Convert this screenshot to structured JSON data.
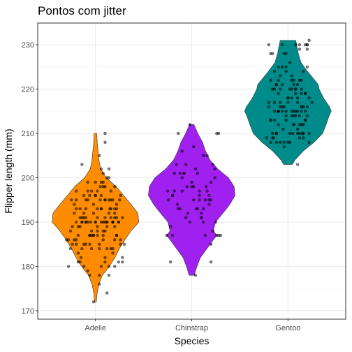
{
  "chart_data": {
    "type": "violin",
    "title": "Pontos com jitter",
    "xlabel": "Species",
    "ylabel": "Flipper length (mm)",
    "categories": [
      "Adelie",
      "Chinstrap",
      "Gentoo"
    ],
    "colors": [
      "#ff8c00",
      "#a020f0",
      "#008b8b"
    ],
    "ylim": [
      168.1,
      234.9
    ],
    "yticks": [
      170,
      180,
      190,
      200,
      210,
      220,
      230
    ],
    "grid": true,
    "violins": [
      {
        "name": "Adelie",
        "min": 172,
        "max": 210,
        "density": [
          [
            172,
            0.02
          ],
          [
            174,
            0.04
          ],
          [
            176,
            0.08
          ],
          [
            178,
            0.16
          ],
          [
            180,
            0.32
          ],
          [
            182,
            0.45
          ],
          [
            184,
            0.55
          ],
          [
            186,
            0.68
          ],
          [
            188,
            0.82
          ],
          [
            190,
            1.0
          ],
          [
            192,
            0.98
          ],
          [
            194,
            0.82
          ],
          [
            196,
            0.65
          ],
          [
            198,
            0.48
          ],
          [
            200,
            0.25
          ],
          [
            202,
            0.12
          ],
          [
            204,
            0.08
          ],
          [
            206,
            0.06
          ],
          [
            208,
            0.04
          ],
          [
            210,
            0.03
          ]
        ]
      },
      {
        "name": "Chinstrap",
        "min": 178,
        "max": 212,
        "density": [
          [
            178,
            0.06
          ],
          [
            180,
            0.12
          ],
          [
            182,
            0.2
          ],
          [
            184,
            0.35
          ],
          [
            186,
            0.5
          ],
          [
            187,
            0.58
          ],
          [
            188,
            0.5
          ],
          [
            190,
            0.55
          ],
          [
            192,
            0.72
          ],
          [
            194,
            0.88
          ],
          [
            196,
            1.0
          ],
          [
            198,
            0.98
          ],
          [
            200,
            0.85
          ],
          [
            202,
            0.6
          ],
          [
            204,
            0.42
          ],
          [
            206,
            0.32
          ],
          [
            208,
            0.25
          ],
          [
            210,
            0.14
          ],
          [
            212,
            0.05
          ]
        ]
      },
      {
        "name": "Gentoo",
        "min": 203,
        "max": 231,
        "density": [
          [
            203,
            0.1
          ],
          [
            204,
            0.16
          ],
          [
            206,
            0.35
          ],
          [
            208,
            0.6
          ],
          [
            210,
            0.8
          ],
          [
            212,
            0.88
          ],
          [
            214,
            0.95
          ],
          [
            215,
            1.0
          ],
          [
            216,
            0.96
          ],
          [
            218,
            0.82
          ],
          [
            220,
            0.72
          ],
          [
            221,
            0.7
          ],
          [
            222,
            0.62
          ],
          [
            224,
            0.45
          ],
          [
            226,
            0.3
          ],
          [
            228,
            0.24
          ],
          [
            229,
            0.22
          ],
          [
            230,
            0.2
          ],
          [
            231,
            0.18
          ]
        ]
      }
    ],
    "points": [
      {
        "name": "Adelie",
        "y": [
          181,
          186,
          195,
          193,
          190,
          181,
          195,
          193,
          190,
          186,
          180,
          182,
          191,
          198,
          185,
          195,
          197,
          184,
          194,
          174,
          180,
          189,
          185,
          180,
          187,
          183,
          187,
          172,
          180,
          178,
          178,
          188,
          184,
          195,
          196,
          190,
          180,
          181,
          184,
          182,
          195,
          186,
          196,
          185,
          190,
          182,
          179,
          190,
          191,
          186,
          188,
          190,
          200,
          187,
          191,
          186,
          193,
          181,
          194,
          185,
          195,
          185,
          192,
          184,
          192,
          195,
          188,
          190,
          198,
          190,
          190,
          196,
          197,
          190,
          195,
          191,
          184,
          187,
          195,
          189,
          196,
          187,
          193,
          191,
          194,
          190,
          189,
          189,
          190,
          202,
          205,
          185,
          186,
          187,
          208,
          190,
          196,
          178,
          192,
          192,
          203,
          183,
          190,
          193,
          184,
          199,
          190,
          181,
          197,
          198,
          191,
          193,
          197,
          191,
          196,
          188,
          199,
          189,
          189,
          187,
          198,
          176,
          202,
          186,
          199,
          191,
          195,
          191,
          210,
          190,
          197,
          193,
          199,
          187,
          190,
          191,
          200,
          185,
          193,
          193,
          187,
          188,
          190,
          192,
          185,
          190,
          184,
          195,
          193,
          187,
          201
        ],
        "jitter": [
          0.1,
          -0.2,
          0.05,
          0.22,
          -0.1,
          0.28,
          -0.25,
          0.15,
          -0.05,
          -0.3,
          0.2,
          -0.15,
          0.1,
          0.05,
          -0.2,
          0.25,
          -0.08,
          0.18,
          -0.22,
          0.12,
          -0.28,
          0.02,
          0.3,
          -0.12,
          0.08,
          -0.18,
          0.22,
          -0.02,
          0.14,
          -0.06,
          0.04,
          -0.26,
          0.16,
          -0.1,
          0.26,
          -0.14,
          0.06,
          0.24,
          -0.04,
          0.1,
          -0.2,
          0.2,
          0.0,
          -0.24,
          0.12,
          0.28,
          -0.08,
          0.18,
          -0.16,
          0.08,
          0.02,
          -0.1,
          0.14,
          -0.02,
          0.2,
          -0.28,
          0.06,
          -0.18,
          0.22,
          -0.06,
          0.1,
          0.26,
          -0.12,
          0.04,
          -0.22,
          0.16,
          -0.04,
          0.24,
          0.08,
          -0.14,
          0.18,
          0.0,
          -0.2,
          0.12,
          -0.08,
          0.28,
          -0.26,
          0.02,
          0.14,
          -0.16,
          0.06,
          0.22,
          -0.1,
          0.16,
          -0.02,
          0.1,
          -0.24,
          0.2,
          0.0,
          0.06,
          0.04,
          -0.12,
          0.26,
          -0.18,
          0.1,
          0.08,
          -0.06,
          0.14,
          -0.02,
          0.2,
          -0.14,
          0.18,
          -0.2,
          0.06,
          0.12,
          -0.08,
          0.24,
          -0.16,
          0.02,
          0.1,
          -0.1,
          0.16,
          -0.04,
          0.22,
          -0.12,
          0.08,
          0.0,
          -0.18,
          0.12,
          -0.06,
          0.2,
          0.04,
          0.14,
          -0.22,
          0.06,
          -0.14,
          0.1,
          0.02,
          0.1,
          -0.08,
          0.16,
          -0.2,
          0.08,
          -0.02,
          0.18,
          -0.12,
          0.12,
          0.04,
          -0.16,
          0.2,
          -0.06,
          0.1,
          0.0,
          0.14,
          -0.1,
          0.06,
          -0.14,
          0.18,
          0.02,
          -0.04,
          0.08
        ]
      },
      {
        "name": "Chinstrap",
        "y": [
          192,
          196,
          193,
          188,
          197,
          198,
          178,
          197,
          195,
          198,
          193,
          194,
          185,
          201,
          190,
          201,
          197,
          181,
          190,
          195,
          181,
          191,
          187,
          193,
          195,
          197,
          200,
          200,
          191,
          205,
          187,
          201,
          187,
          203,
          195,
          199,
          195,
          210,
          192,
          205,
          210,
          187,
          196,
          196,
          196,
          201,
          190,
          212,
          187,
          198,
          199,
          201,
          193,
          203,
          187,
          197,
          191,
          203,
          202,
          194,
          206,
          189,
          195,
          207,
          202,
          193,
          210,
          198
        ],
        "jitter": [
          0.1,
          -0.2,
          0.05,
          0.22,
          -0.1,
          0.15,
          0.04,
          -0.25,
          0.18,
          -0.05,
          0.12,
          -0.15,
          0.2,
          -0.08,
          0.25,
          -0.18,
          0.08,
          0.2,
          -0.02,
          0.14,
          -0.22,
          0.1,
          0.28,
          -0.12,
          0.02,
          0.16,
          -0.1,
          0.24,
          -0.06,
          0.12,
          -0.2,
          0.06,
          0.3,
          -0.16,
          0.2,
          0.0,
          -0.24,
          0.28,
          -0.04,
          0.16,
          -0.14,
          0.26,
          -0.2,
          0.08,
          0.18,
          -0.08,
          0.12,
          -0.02,
          -0.26,
          0.02,
          0.2,
          -0.12,
          0.06,
          0.22,
          0.14,
          -0.18,
          0.1,
          -0.06,
          0.04,
          0.18,
          -0.1,
          -0.22,
          0.08,
          0.02,
          0.24,
          -0.14,
          0.26,
          0.0
        ]
      },
      {
        "name": "Gentoo",
        "y": [
          211,
          230,
          210,
          218,
          215,
          210,
          211,
          219,
          209,
          215,
          214,
          216,
          214,
          213,
          210,
          217,
          210,
          221,
          209,
          222,
          218,
          215,
          213,
          215,
          215,
          215,
          216,
          215,
          210,
          220,
          222,
          209,
          207,
          230,
          220,
          220,
          213,
          219,
          208,
          208,
          208,
          225,
          210,
          216,
          222,
          217,
          210,
          225,
          213,
          215,
          210,
          220,
          210,
          225,
          217,
          220,
          208,
          220,
          208,
          224,
          208,
          221,
          214,
          231,
          219,
          230,
          214,
          229,
          220,
          223,
          216,
          221,
          221,
          217,
          216,
          230,
          209,
          220,
          215,
          223,
          212,
          221,
          212,
          224,
          212,
          228,
          218,
          218,
          212,
          230,
          218,
          228,
          212,
          224,
          214,
          226,
          216,
          222,
          203,
          225,
          219,
          228,
          215,
          228,
          216,
          215,
          210,
          219,
          208,
          209,
          216,
          229,
          213,
          230,
          217,
          230,
          217,
          222,
          214,
          215,
          222,
          212,
          213
        ],
        "jitter": [
          0.1,
          -0.2,
          0.05,
          0.22,
          -0.1,
          0.15,
          -0.05,
          0.18,
          -0.15,
          0.08,
          0.2,
          -0.08,
          0.12,
          -0.18,
          0.02,
          0.25,
          -0.12,
          0.06,
          -0.22,
          0.14,
          0.0,
          -0.06,
          0.18,
          -0.14,
          0.1,
          -0.02,
          0.16,
          -0.1,
          0.22,
          -0.16,
          0.04,
          0.12,
          -0.04,
          0.2,
          -0.08,
          0.08,
          -0.18,
          0.14,
          0.02,
          -0.12,
          0.22,
          -0.06,
          0.16,
          -0.2,
          0.06,
          -0.14,
          0.1,
          -0.02,
          0.18,
          -0.1,
          0.12,
          0.04,
          -0.16,
          0.2,
          -0.08,
          0.14,
          -0.04,
          0.08,
          -0.18,
          0.16,
          0.0,
          -0.12,
          0.06,
          0.22,
          -0.1,
          0.18,
          -0.02,
          0.12,
          -0.14,
          0.04,
          0.2,
          -0.06,
          0.1,
          -0.2,
          0.14,
          0.08,
          -0.16,
          0.02,
          0.18,
          -0.08,
          0.12,
          -0.12,
          0.06,
          -0.02,
          0.16,
          -0.18,
          0.1,
          0.04,
          -0.1,
          0.2,
          0.0,
          -0.04,
          0.14,
          -0.14,
          0.08,
          0.02,
          -0.06,
          0.12,
          0.1,
          -0.1,
          0.18,
          -0.02,
          0.06,
          -0.16,
          0.14,
          0.04,
          -0.12,
          0.08,
          -0.08,
          0.16,
          -0.04,
          0.2,
          -0.14,
          0.12,
          0.0,
          -0.06,
          0.1,
          -0.18,
          0.04,
          0.14,
          -0.1,
          0.06,
          -0.02
        ]
      }
    ]
  }
}
